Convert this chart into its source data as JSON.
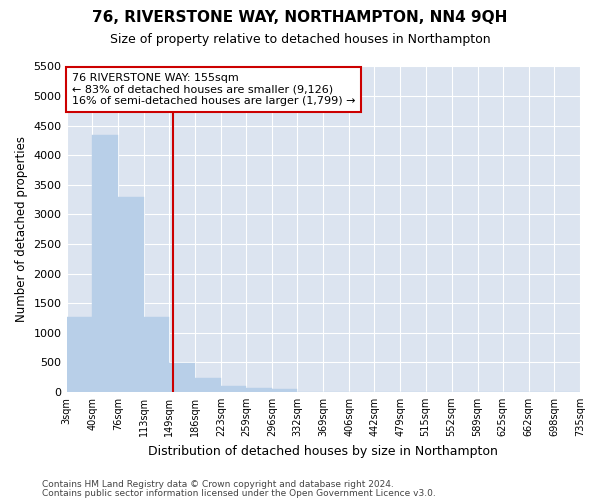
{
  "title": "76, RIVERSTONE WAY, NORTHAMPTON, NN4 9QH",
  "subtitle": "Size of property relative to detached houses in Northampton",
  "xlabel": "Distribution of detached houses by size in Northampton",
  "ylabel": "Number of detached properties",
  "footer_line1": "Contains HM Land Registry data © Crown copyright and database right 2024.",
  "footer_line2": "Contains public sector information licensed under the Open Government Licence v3.0.",
  "annotation_line1": "76 RIVERSTONE WAY: 155sqm",
  "annotation_line2": "← 83% of detached houses are smaller (9,126)",
  "annotation_line3": "16% of semi-detached houses are larger (1,799) →",
  "property_size": 155,
  "bin_edges": [
    3,
    40,
    76,
    113,
    149,
    186,
    223,
    259,
    296,
    332,
    369,
    406,
    442,
    479,
    515,
    552,
    589,
    625,
    662,
    698,
    735
  ],
  "bin_counts": [
    1270,
    4350,
    3300,
    1270,
    490,
    230,
    90,
    60,
    50,
    0,
    0,
    0,
    0,
    0,
    0,
    0,
    0,
    0,
    0,
    0
  ],
  "bar_color": "#b8cfe8",
  "bar_edge_color": "#b8cfe8",
  "red_line_color": "#cc0000",
  "annotation_box_color": "#cc0000",
  "bg_color": "#dce4f0",
  "grid_color": "#ffffff",
  "ylim": [
    0,
    5500
  ],
  "yticks": [
    0,
    500,
    1000,
    1500,
    2000,
    2500,
    3000,
    3500,
    4000,
    4500,
    5000,
    5500
  ]
}
